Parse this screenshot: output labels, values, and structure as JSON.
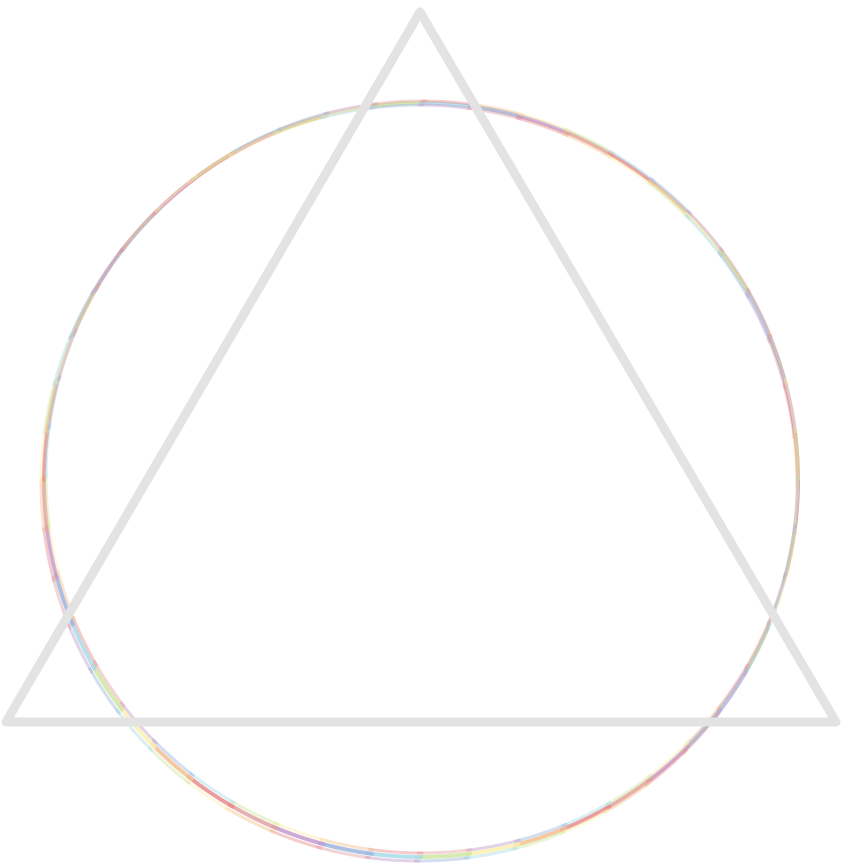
{
  "figure": {
    "shapes": [
      "triangle-outline",
      "rainbow-circle-outline"
    ],
    "triangle": {
      "stroke_color": "#e3e3e3",
      "fill": "none"
    },
    "circle": {
      "gradient_colors": [
        "#e98d8d",
        "#f3c18f",
        "#fbf0b2",
        "#cfe7a1",
        "#a8dcea",
        "#9eb5e0",
        "#c39ccf",
        "#e2a2a2"
      ],
      "fill": "none"
    }
  }
}
